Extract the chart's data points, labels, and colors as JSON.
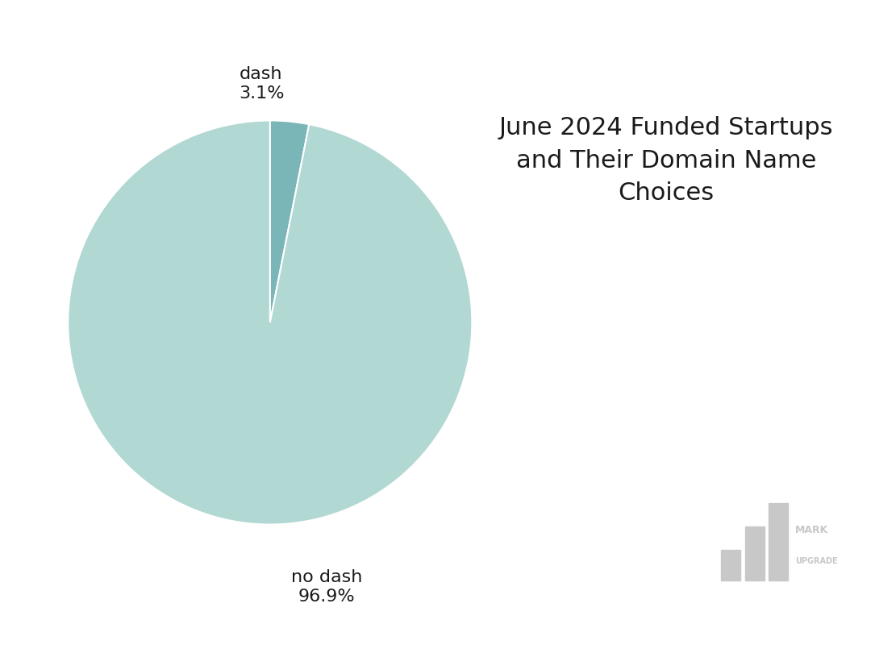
{
  "title": "June 2024 Funded Startups\nand Their Domain Name\nChoices",
  "values": [
    3.1,
    96.9
  ],
  "colors": [
    "#7ab5b8",
    "#b2d8d3"
  ],
  "background_color": "#ffffff",
  "title_fontsize": 22,
  "label_fontsize": 16,
  "label_dash": "dash\n3.1%",
  "label_nodash": "no dash\n96.9%",
  "watermark_color": "#c8c8c8",
  "watermark_fontsize": 10
}
